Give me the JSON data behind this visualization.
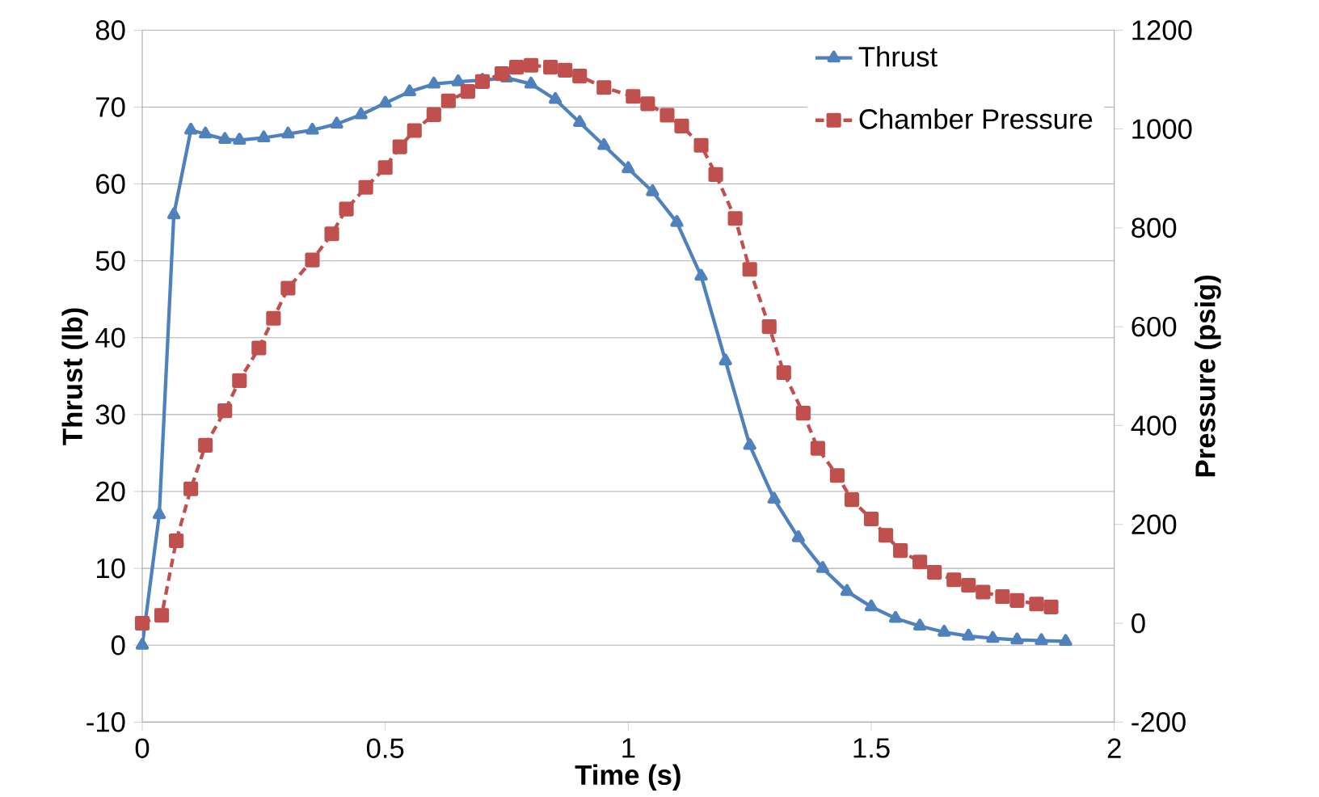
{
  "chart_data": {
    "type": "line",
    "xlabel": "Time (s)",
    "ylabel": "Thrust (lb)",
    "y2label": "Pressure (psig)",
    "xlim": [
      0,
      2
    ],
    "xticks": [
      0,
      0.5,
      1,
      1.5,
      2
    ],
    "ylim": [
      -10,
      80
    ],
    "yticks": [
      -10,
      0,
      10,
      20,
      30,
      40,
      50,
      60,
      70,
      80
    ],
    "y2lim": [
      -200,
      1200
    ],
    "y2ticks": [
      -200,
      0,
      200,
      400,
      600,
      800,
      1000,
      1200
    ],
    "grid": "y",
    "legend": "top right",
    "series": [
      {
        "name": "Thrust",
        "color": "#4f81bd",
        "marker": "triangle",
        "line_style": "solid",
        "x": [
          0,
          0.035,
          0.065,
          0.1,
          0.13,
          0.17,
          0.2,
          0.25,
          0.3,
          0.35,
          0.4,
          0.45,
          0.5,
          0.55,
          0.6,
          0.65,
          0.7,
          0.75,
          0.8,
          0.85,
          0.9,
          0.95,
          1.0,
          1.05,
          1.1,
          1.15,
          1.2,
          1.25,
          1.3,
          1.35,
          1.4,
          1.45,
          1.5,
          1.55,
          1.6,
          1.65,
          1.7,
          1.75,
          1.8,
          1.85,
          1.9
        ],
        "values": [
          0,
          17,
          56,
          67,
          66.5,
          65.8,
          65.7,
          66,
          66.5,
          67,
          67.8,
          69,
          70.5,
          72,
          73,
          73.3,
          73.5,
          73.8,
          73,
          71,
          68,
          65,
          62,
          59,
          55,
          48,
          37,
          26,
          19,
          14,
          10,
          7,
          5,
          3.5,
          2.5,
          1.7,
          1.2,
          0.9,
          0.7,
          0.6,
          0.5
        ]
      },
      {
        "name": "Chamber Pressure",
        "color": "#c0504d",
        "marker": "square",
        "line_style": "dashed",
        "axis": "y2",
        "x": [
          0,
          0.04,
          0.07,
          0.1,
          0.13,
          0.17,
          0.2,
          0.24,
          0.27,
          0.3,
          0.35,
          0.39,
          0.42,
          0.46,
          0.5,
          0.53,
          0.56,
          0.6,
          0.63,
          0.67,
          0.7,
          0.74,
          0.77,
          0.8,
          0.84,
          0.87,
          0.9,
          0.95,
          1.01,
          1.04,
          1.08,
          1.11,
          1.15,
          1.18,
          1.22,
          1.25,
          1.29,
          1.32,
          1.36,
          1.39,
          1.43,
          1.46,
          1.5,
          1.53,
          1.56,
          1.6,
          1.63,
          1.67,
          1.7,
          1.73,
          1.77,
          1.8,
          1.84,
          1.87
        ],
        "values": [
          0,
          16,
          167,
          272,
          360,
          430,
          491,
          557,
          617,
          678,
          735,
          788,
          838,
          882,
          922,
          964,
          997,
          1029,
          1057,
          1076,
          1096,
          1112,
          1125,
          1129,
          1125,
          1119,
          1107,
          1084,
          1066,
          1051,
          1028,
          1006,
          967,
          908,
          819,
          716,
          600,
          507,
          425,
          354,
          299,
          250,
          211,
          178,
          147,
          124,
          103,
          88,
          77,
          63,
          54,
          46,
          39,
          33
        ]
      }
    ]
  }
}
